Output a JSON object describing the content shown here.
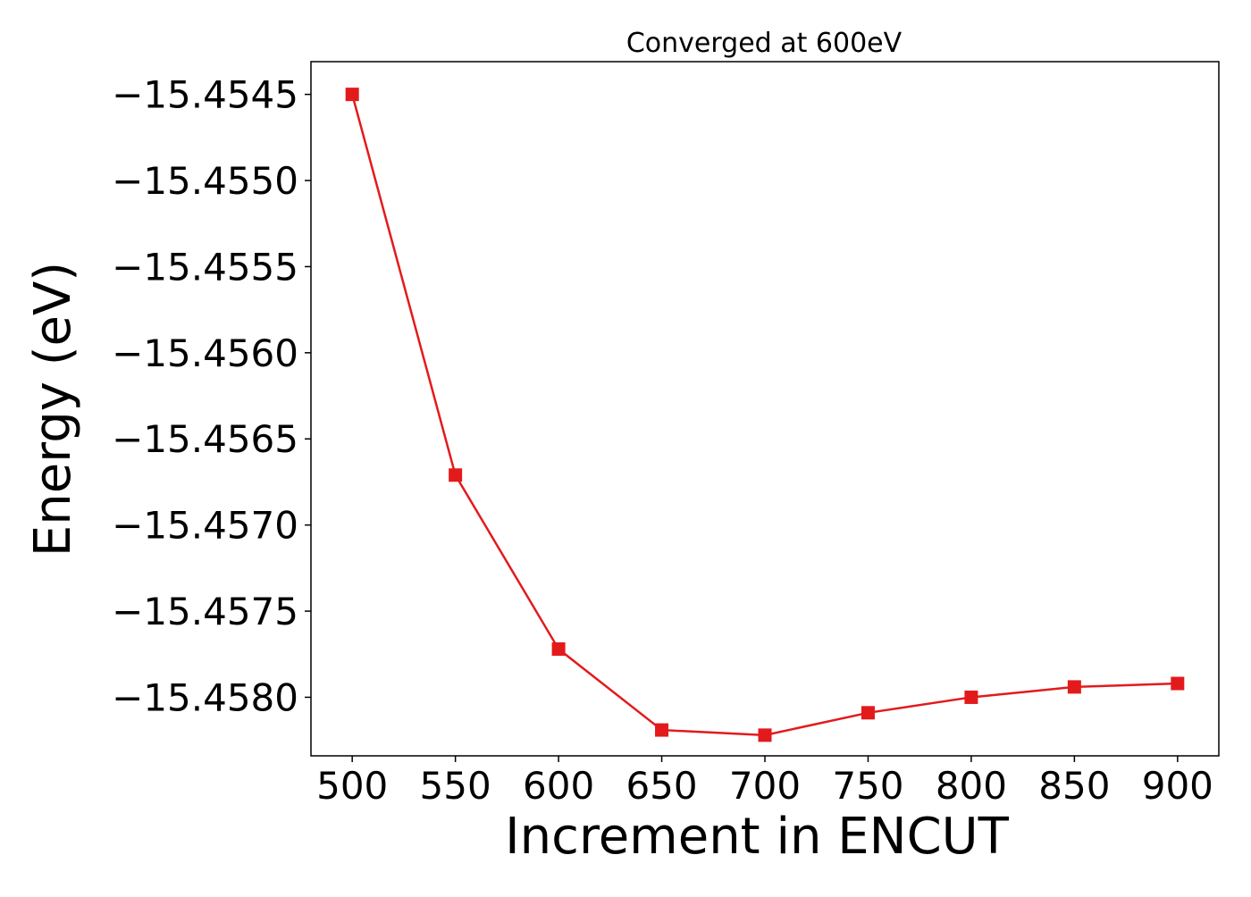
{
  "chart_data": {
    "type": "line",
    "title": "Converged at 600eV",
    "xlabel": "Increment in ENCUT",
    "ylabel": "Energy (eV)",
    "x": [
      500,
      550,
      600,
      650,
      700,
      750,
      800,
      850,
      900
    ],
    "series": [
      {
        "values": [
          -15.4545,
          -15.45671,
          -15.45772,
          -15.45819,
          -15.45822,
          -15.45809,
          -15.458,
          -15.45794,
          -15.45792
        ],
        "color": "#e31a1c",
        "marker": "square"
      }
    ],
    "xticks": [
      500,
      550,
      600,
      650,
      700,
      750,
      800,
      850,
      900
    ],
    "xtick_labels": [
      "500",
      "550",
      "600",
      "650",
      "700",
      "750",
      "800",
      "850",
      "900"
    ],
    "yticks": [
      -15.4545,
      -15.455,
      -15.4555,
      -15.456,
      -15.4565,
      -15.457,
      -15.4575,
      -15.458
    ],
    "ytick_labels": [
      "−15.4545",
      "−15.4550",
      "−15.4555",
      "−15.4560",
      "−15.4565",
      "−15.4570",
      "−15.4575",
      "−15.4580"
    ],
    "xlim": [
      480,
      920
    ],
    "ylim": [
      -15.45834,
      -15.45431
    ],
    "grid": false,
    "legend": "none"
  }
}
